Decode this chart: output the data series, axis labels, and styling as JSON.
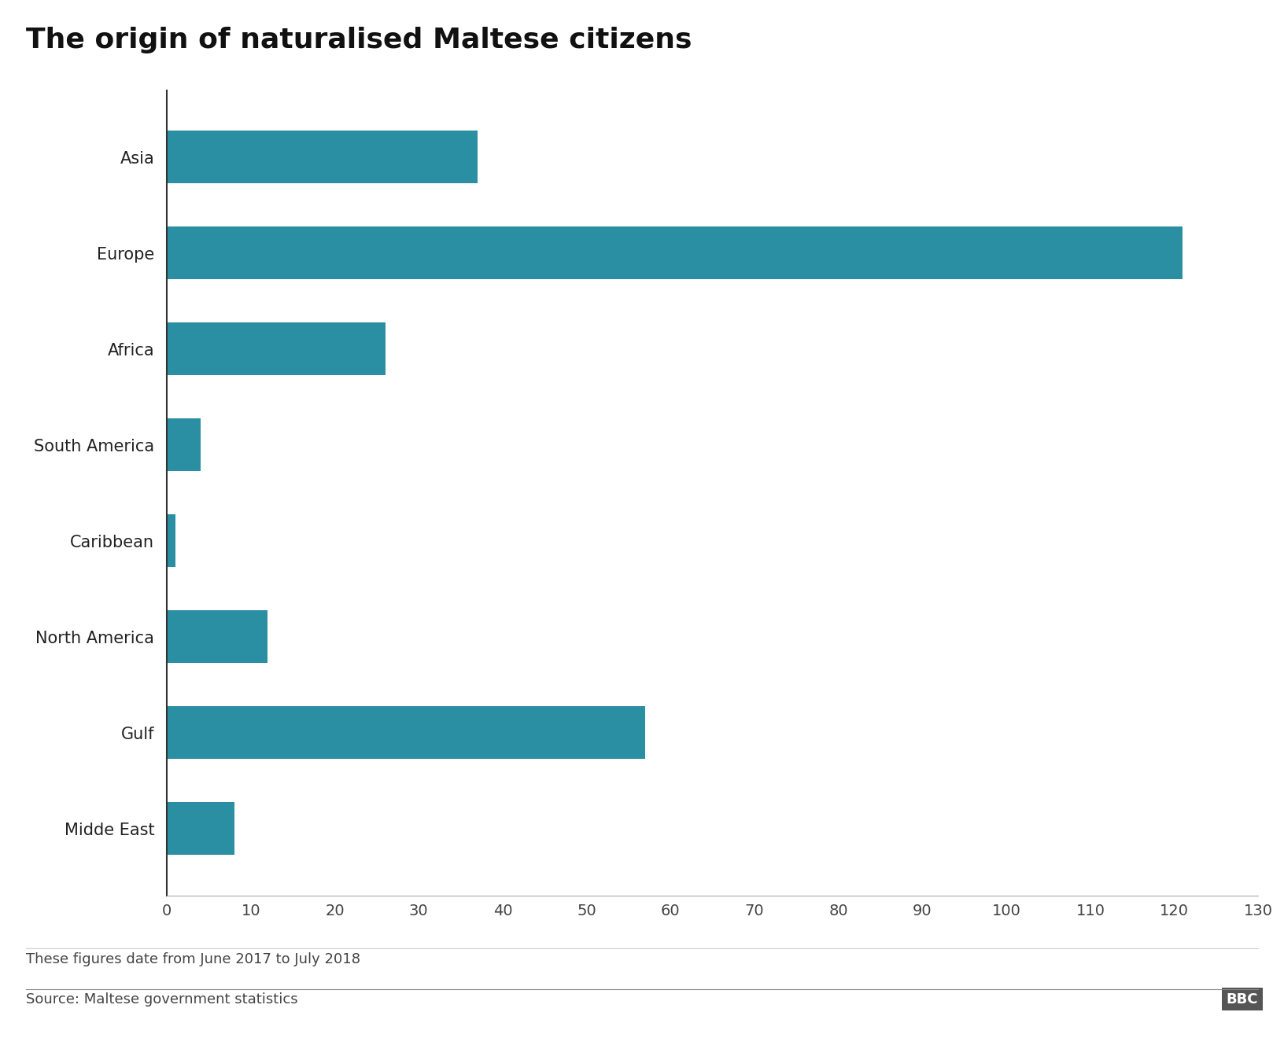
{
  "title": "The origin of naturalised Maltese citizens",
  "categories": [
    "Midde East",
    "Gulf",
    "North America",
    "Caribbean",
    "South America",
    "Africa",
    "Europe",
    "Asia"
  ],
  "values": [
    8,
    57,
    12,
    1,
    4,
    26,
    121,
    37
  ],
  "bar_color": "#2a8fa3",
  "xlim": [
    0,
    130
  ],
  "xticks": [
    0,
    10,
    20,
    30,
    40,
    50,
    60,
    70,
    80,
    90,
    100,
    110,
    120,
    130
  ],
  "footnote": "These figures date from June 2017 to July 2018",
  "source": "Source: Maltese government statistics",
  "bbc_label": "BBC",
  "background_color": "#ffffff",
  "title_fontsize": 26,
  "label_fontsize": 15,
  "tick_fontsize": 14,
  "footnote_fontsize": 13,
  "source_fontsize": 13
}
